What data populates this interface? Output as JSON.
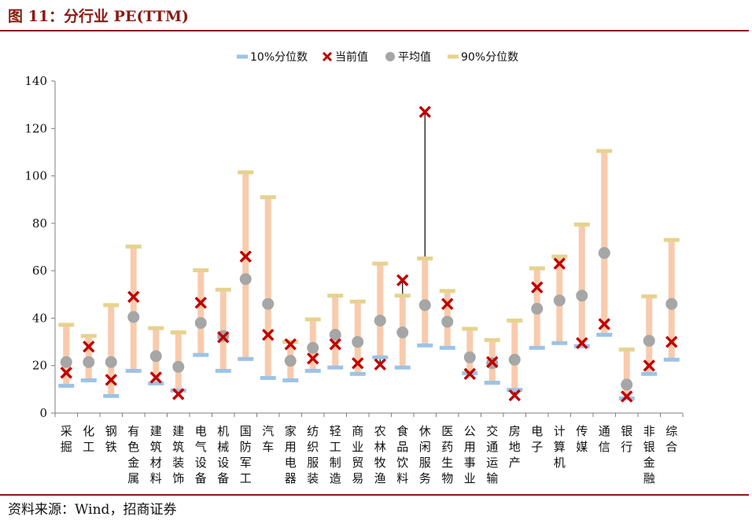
{
  "title": "图 11：分行业 PE(TTM)",
  "source": "资料来源：Wind，招商证券",
  "chart_data": {
    "type": "range-dot",
    "title": "图 11：分行业 PE(TTM)",
    "xlabel": "",
    "ylabel": "",
    "ylim": [
      0,
      140
    ],
    "yticks": [
      0,
      20,
      40,
      60,
      80,
      100,
      120,
      140
    ],
    "grid": false,
    "legend_position": "top",
    "categories": [
      "采掘",
      "化工",
      "钢铁",
      "有色金属",
      "建筑材料",
      "建筑装饰",
      "电气设备",
      "机械设备",
      "国防军工",
      "汽车",
      "家用电器",
      "纺织服装",
      "轻工制造",
      "商业贸易",
      "农林牧渔",
      "食品饮料",
      "休闲服务",
      "医药生物",
      "公用事业",
      "交通运输",
      "房地产",
      "电子",
      "计算机",
      "传媒",
      "通信",
      "银行",
      "非银金融",
      "综合"
    ],
    "series": [
      {
        "name": "10%分位数",
        "color": "#9dc3e6",
        "marker": "dash",
        "values": [
          11.5,
          13.8,
          7.2,
          17.8,
          12.5,
          9.5,
          24.5,
          17.8,
          22.8,
          14.8,
          13.8,
          17.8,
          19.2,
          16.5,
          23.5,
          19.2,
          28.5,
          27.5,
          16.8,
          12.8,
          9.8,
          27.5,
          29.5,
          28.2,
          33.0,
          6.2,
          16.5,
          22.5
        ]
      },
      {
        "name": "当前值",
        "color": "#c00000",
        "marker": "x",
        "values": [
          17.0,
          28.0,
          14.0,
          49.0,
          15.0,
          8.0,
          46.5,
          32.0,
          66.0,
          33.0,
          29.0,
          23.0,
          29.0,
          21.0,
          20.5,
          56.0,
          127.0,
          46.0,
          16.5,
          21.5,
          7.5,
          53.0,
          63.0,
          29.5,
          37.5,
          7.0,
          20.0,
          30.0
        ]
      },
      {
        "name": "平均值",
        "color": "#a6a6a6",
        "marker": "circle",
        "values": [
          21.5,
          21.5,
          21.5,
          40.5,
          24.0,
          19.5,
          38.0,
          32.5,
          56.5,
          46.0,
          22.0,
          27.5,
          33.0,
          30.0,
          39.0,
          34.0,
          45.5,
          38.5,
          23.5,
          21.0,
          22.5,
          44.0,
          47.5,
          49.5,
          67.5,
          12.0,
          30.5,
          46.0
        ]
      },
      {
        "name": "90%分位数",
        "color": "#e6d28e",
        "marker": "dash",
        "values": [
          37.2,
          32.5,
          45.5,
          70.2,
          35.8,
          34.0,
          60.2,
          52.0,
          101.5,
          91.0,
          30.0,
          39.5,
          49.5,
          47.0,
          63.0,
          49.5,
          65.2,
          51.5,
          35.5,
          30.8,
          39.0,
          61.0,
          66.0,
          79.5,
          110.5,
          26.8,
          49.2,
          73.0
        ]
      }
    ],
    "range_bar_color": "#f8cbad",
    "outlier_line_color": "#000000"
  }
}
